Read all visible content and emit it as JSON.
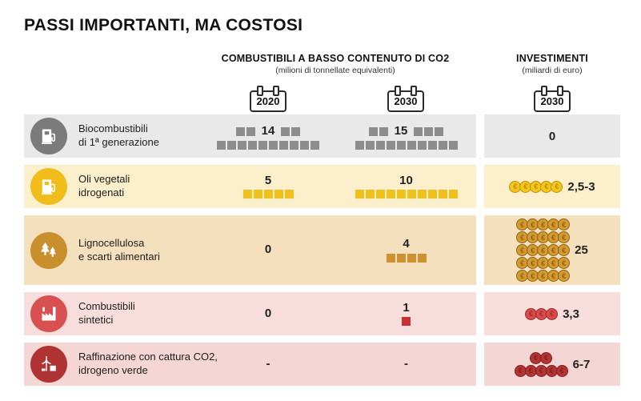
{
  "title": "PASSI IMPORTANTI, MA COSTOSI",
  "headers": {
    "fuels_title": "COMBUSTIBILI A BASSO CONTENUTO DI CO2",
    "fuels_subtitle": "(milioni di tonnellate equivalenti)",
    "investments_title": "INVESTIMENTI",
    "investments_subtitle": "(miliardi di euro)",
    "year_2020": "2020",
    "year_2030_fuels": "2030",
    "year_2030_inv": "2030"
  },
  "chart_data": {
    "type": "table",
    "title": "PASSI IMPORTANTI, MA COSTOSI",
    "columns": [
      "Combustibili 2020 (milioni di tonnellate equivalenti)",
      "Combustibili 2030 (milioni di tonnellate equivalenti)",
      "Investimenti 2030 (miliardi di euro)"
    ],
    "rows": [
      {
        "label": "Biocombustibili di 1ª generazione",
        "y2020": "14",
        "y2030": "15",
        "investimenti": "0"
      },
      {
        "label": "Oli vegetali idrogenati",
        "y2020": "5",
        "y2030": "10",
        "investimenti": "2,5-3"
      },
      {
        "label": "Lignocellulosa e scarti alimentari",
        "y2020": "0",
        "y2030": "4",
        "investimenti": "25"
      },
      {
        "label": "Combustibili sintetici",
        "y2020": "0",
        "y2030": "1",
        "investimenti": "3,3"
      },
      {
        "label": "Raffinazione con cattura CO2, idrogeno verde",
        "y2020": "-",
        "y2030": "-",
        "investimenti": "6-7"
      }
    ]
  },
  "rows": [
    {
      "label_line1": "Biocombustibili",
      "label_line2": "di 1ª generazione",
      "icon": "fuel-pump-icon",
      "color": "#7b7b7b",
      "square_color": "#8d8d8d",
      "bg": "#e9e9e9",
      "coin_fill": "#8d8d8d",
      "coin_stroke": "#5f5f5f",
      "y2020": {
        "value": "14",
        "squares": 14,
        "layout": "inline"
      },
      "y2030": {
        "value": "15",
        "squares": 15,
        "layout": "inline"
      },
      "investment": {
        "value": "0",
        "coin_rows": []
      }
    },
    {
      "label_line1": "Oli vegetali",
      "label_line2": "idrogenati",
      "icon": "fuel-pump-leaf-icon",
      "color": "#f0bd1a",
      "square_color": "#f0c11c",
      "bg": "#fbf0cb",
      "coin_fill": "#f5c518",
      "coin_stroke": "#b8900f",
      "y2020": {
        "value": "5",
        "squares": 5,
        "layout": "above"
      },
      "y2030": {
        "value": "10",
        "squares": 10,
        "layout": "above"
      },
      "investment": {
        "value": "2,5-3",
        "coin_rows": [
          5
        ]
      }
    },
    {
      "label_line1": "Lignocellulosa",
      "label_line2": "e scarti alimentari",
      "icon": "trees-icon",
      "color": "#c98f2d",
      "square_color": "#cd9130",
      "bg": "#f4e0bd",
      "coin_fill": "#d49a2e",
      "coin_stroke": "#8f6218",
      "y2020": {
        "value": "0",
        "squares": 0,
        "layout": "above"
      },
      "y2030": {
        "value": "4",
        "squares": 4,
        "layout": "above"
      },
      "investment": {
        "value": "25",
        "coin_rows": [
          5,
          5,
          5,
          5,
          5
        ]
      }
    },
    {
      "label_line1": "Combustibili",
      "label_line2": "sintetici",
      "icon": "factory-icon",
      "color": "#d85150",
      "square_color": "#cc2f2f",
      "bg": "#f8dddd",
      "coin_fill": "#d84b4b",
      "coin_stroke": "#9e2b2b",
      "y2020": {
        "value": "0",
        "squares": 0,
        "layout": "above"
      },
      "y2030": {
        "value": "1",
        "squares": 1,
        "layout": "above"
      },
      "investment": {
        "value": "3,3",
        "coin_rows": [
          3
        ]
      }
    },
    {
      "label_line1": "Raffinazione con cattura CO2,",
      "label_line2": "idrogeno verde",
      "icon": "refinery-wind-icon",
      "color": "#ae3332",
      "square_color": "#b23433",
      "bg": "#f4d6d4",
      "coin_fill": "#b23433",
      "coin_stroke": "#7e1f1e",
      "y2020": {
        "value": "-",
        "squares": 0,
        "layout": "above"
      },
      "y2030": {
        "value": "-",
        "squares": 0,
        "layout": "above"
      },
      "investment": {
        "value": "6-7",
        "coin_rows": [
          2,
          5
        ]
      }
    }
  ]
}
